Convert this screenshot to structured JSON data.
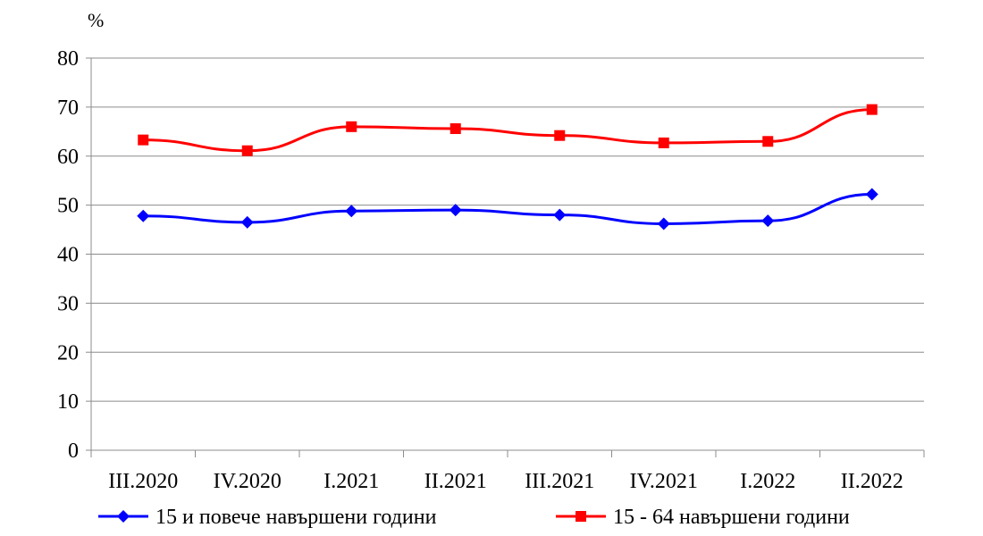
{
  "chart_data": {
    "type": "line",
    "unit_label": "%",
    "categories": [
      "III.2020",
      "IV.2020",
      "I.2021",
      "II.2021",
      "III.2021",
      "IV.2021",
      "I.2022",
      "II.2022"
    ],
    "y_ticks": [
      "0",
      "10",
      "20",
      "30",
      "40",
      "50",
      "60",
      "70",
      "80"
    ],
    "ylim": [
      0,
      80
    ],
    "grid": true,
    "legend_position": "bottom",
    "series": [
      {
        "name": "15 и повече навършени години",
        "color": "#0000ff",
        "marker": "diamond",
        "values": [
          47.8,
          46.5,
          48.8,
          49.0,
          48.0,
          46.2,
          46.8,
          52.2
        ]
      },
      {
        "name": "15 - 64 навършени години",
        "color": "#ff0000",
        "marker": "square",
        "values": [
          63.3,
          61.1,
          66.0,
          65.6,
          64.2,
          62.7,
          63.0,
          69.5
        ]
      }
    ]
  }
}
